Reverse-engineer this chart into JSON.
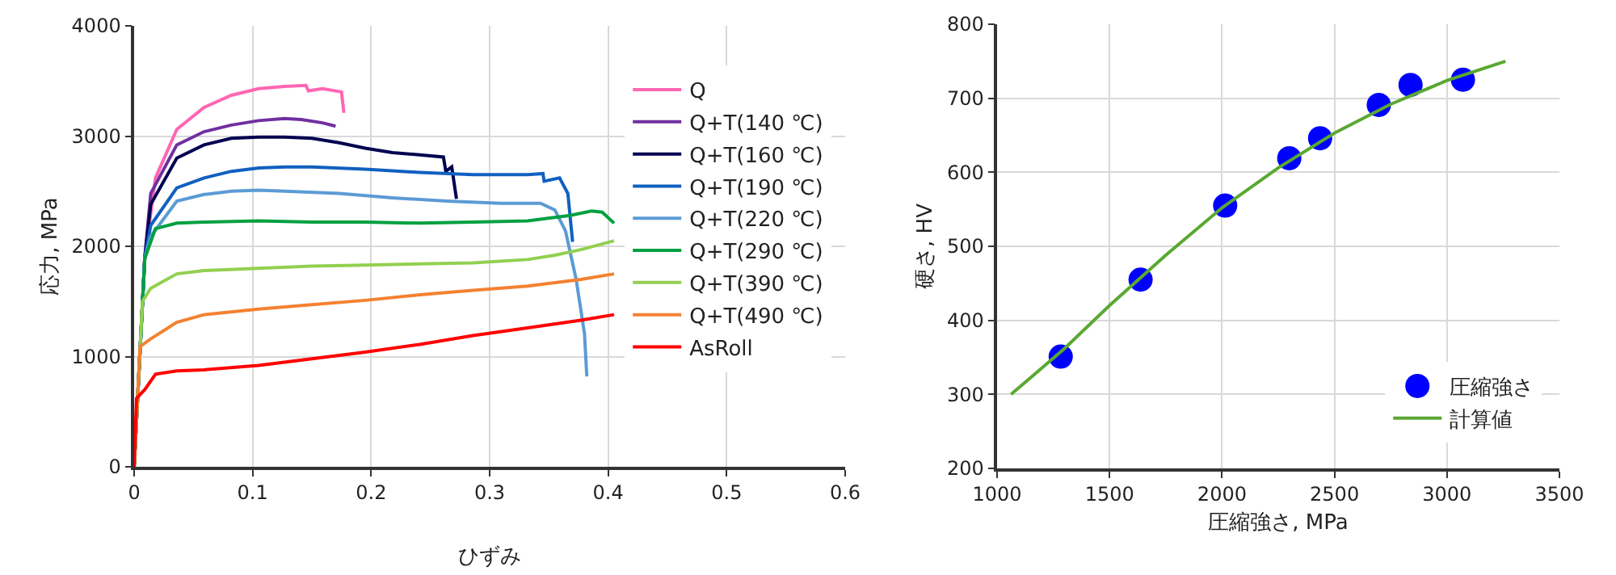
{
  "chart_data": [
    {
      "type": "line",
      "xlabel": "ひずみ",
      "ylabel": "応力, MPa",
      "xlim": [
        0,
        0.6
      ],
      "xticks": [
        0,
        0.1,
        0.2,
        0.3,
        0.4,
        0.5,
        0.6
      ],
      "ylim": [
        0,
        4000
      ],
      "yticks": [
        0,
        1000,
        2000,
        3000,
        4000
      ],
      "grid": true,
      "legend": "top right",
      "series": [
        {
          "name": "Q",
          "color": "#ff66b3",
          "x": [
            0,
            0.009,
            0.018,
            0.036,
            0.059,
            0.082,
            0.105,
            0.127,
            0.145,
            0.147,
            0.159,
            0.175,
            0.177
          ],
          "values": [
            0,
            1900,
            2620,
            3060,
            3260,
            3370,
            3430,
            3450,
            3460,
            3410,
            3430,
            3400,
            3210
          ]
        },
        {
          "name": "Q+T(140 ℃)",
          "color": "#7030a0",
          "x": [
            0,
            0.009,
            0.014,
            0.036,
            0.059,
            0.082,
            0.105,
            0.127,
            0.141,
            0.159,
            0.17
          ],
          "values": [
            0,
            1900,
            2480,
            2920,
            3040,
            3100,
            3140,
            3160,
            3150,
            3120,
            3090
          ]
        },
        {
          "name": "Q+T(160 ℃)",
          "color": "#000050",
          "x": [
            0,
            0.009,
            0.014,
            0.036,
            0.059,
            0.082,
            0.105,
            0.127,
            0.15,
            0.173,
            0.195,
            0.218,
            0.241,
            0.261,
            0.263,
            0.268,
            0.272
          ],
          "values": [
            0,
            1900,
            2380,
            2800,
            2920,
            2980,
            2990,
            2990,
            2980,
            2940,
            2890,
            2850,
            2830,
            2810,
            2680,
            2720,
            2430
          ]
        },
        {
          "name": "Q+T(190 ℃)",
          "color": "#1060c0",
          "x": [
            0,
            0.009,
            0.014,
            0.036,
            0.059,
            0.082,
            0.105,
            0.127,
            0.15,
            0.195,
            0.241,
            0.286,
            0.332,
            0.345,
            0.346,
            0.359,
            0.366,
            0.37
          ],
          "values": [
            0,
            1900,
            2190,
            2530,
            2620,
            2680,
            2710,
            2720,
            2720,
            2700,
            2670,
            2650,
            2650,
            2660,
            2590,
            2620,
            2480,
            2040
          ]
        },
        {
          "name": "Q+T(220 ℃)",
          "color": "#5b9bd5",
          "x": [
            0,
            0.009,
            0.014,
            0.036,
            0.059,
            0.082,
            0.105,
            0.127,
            0.173,
            0.218,
            0.264,
            0.309,
            0.343,
            0.355,
            0.364,
            0.373,
            0.38,
            0.382
          ],
          "values": [
            0,
            1900,
            2090,
            2410,
            2470,
            2500,
            2510,
            2500,
            2480,
            2440,
            2410,
            2390,
            2390,
            2330,
            2140,
            1700,
            1210,
            820
          ]
        },
        {
          "name": "Q+T(290 ℃)",
          "color": "#00a040",
          "x": [
            0,
            0.009,
            0.018,
            0.036,
            0.059,
            0.105,
            0.15,
            0.195,
            0.241,
            0.286,
            0.332,
            0.368,
            0.386,
            0.395,
            0.405
          ],
          "values": [
            0,
            1890,
            2160,
            2210,
            2220,
            2230,
            2220,
            2220,
            2210,
            2220,
            2230,
            2280,
            2320,
            2310,
            2210
          ]
        },
        {
          "name": "Q+T(390 ℃)",
          "color": "#92d050",
          "x": [
            0,
            0.007,
            0.014,
            0.036,
            0.059,
            0.105,
            0.15,
            0.195,
            0.241,
            0.286,
            0.332,
            0.355,
            0.377,
            0.405
          ],
          "values": [
            0,
            1500,
            1620,
            1750,
            1780,
            1800,
            1820,
            1830,
            1840,
            1850,
            1880,
            1920,
            1970,
            2050
          ]
        },
        {
          "name": "Q+T(490 ℃)",
          "color": "#f48130",
          "x": [
            0,
            0.005,
            0.014,
            0.036,
            0.059,
            0.105,
            0.15,
            0.195,
            0.241,
            0.286,
            0.332,
            0.377,
            0.405
          ],
          "values": [
            0,
            1090,
            1160,
            1310,
            1380,
            1430,
            1470,
            1510,
            1560,
            1600,
            1640,
            1700,
            1750
          ]
        },
        {
          "name": "AsRoll",
          "color": "#ff0000",
          "x": [
            0,
            0.002,
            0.009,
            0.018,
            0.036,
            0.059,
            0.105,
            0.15,
            0.195,
            0.241,
            0.286,
            0.332,
            0.377,
            0.405
          ],
          "values": [
            0,
            620,
            700,
            840,
            870,
            880,
            920,
            980,
            1040,
            1110,
            1190,
            1260,
            1330,
            1380
          ]
        }
      ]
    },
    {
      "type": "scatter",
      "xlabel": "圧縮強さ, MPa",
      "ylabel": "硬さ, HV",
      "xlim": [
        1000,
        3500
      ],
      "xticks": [
        1000,
        1500,
        2000,
        2500,
        3000,
        3500
      ],
      "ylim": [
        200,
        800
      ],
      "yticks": [
        200,
        300,
        400,
        500,
        600,
        700,
        800
      ],
      "grid": true,
      "legend": "bottom right",
      "series": [
        {
          "name": "圧縮強さ",
          "marker": "circle",
          "color": "#0000ff",
          "x": [
            1283,
            1638,
            2014,
            2299,
            2436,
            2697,
            2838,
            3071
          ],
          "values": [
            351,
            455,
            555,
            619,
            646,
            691,
            718,
            725
          ]
        },
        {
          "name": "計算値",
          "type": "line",
          "color": "#5aa832",
          "x": [
            1062,
            1300,
            1500,
            1750,
            2000,
            2250,
            2500,
            2750,
            3000,
            3260
          ],
          "values": [
            300,
            362,
            420,
            488,
            552,
            606,
            653,
            692,
            724,
            750
          ]
        }
      ]
    }
  ]
}
